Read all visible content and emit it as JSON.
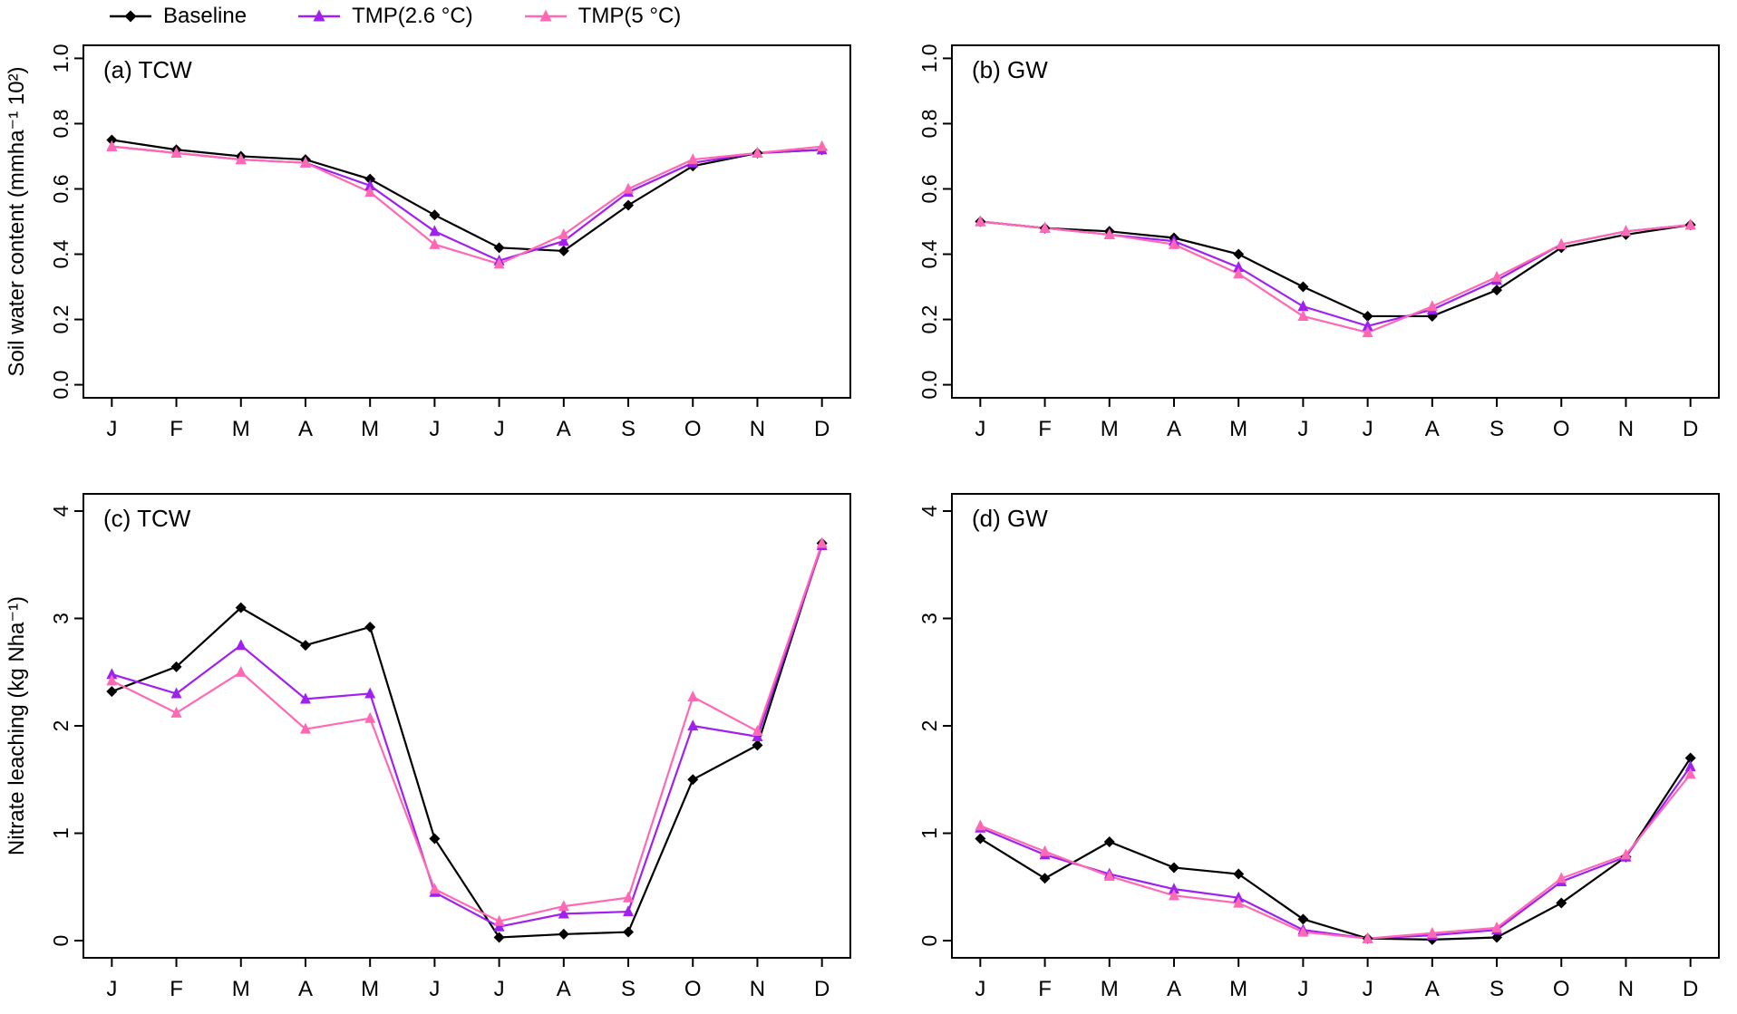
{
  "legend": {
    "items": [
      {
        "label": "Baseline",
        "color": "#000000",
        "marker": "diamond"
      },
      {
        "label": "TMP(2.6 °C)",
        "color": "#A020F0",
        "marker": "triangle"
      },
      {
        "label": "TMP(5 °C)",
        "color": "#FF69B4",
        "marker": "triangle"
      }
    ]
  },
  "chart_data": [
    {
      "type": "line",
      "id": "a",
      "title": "(a) TCW",
      "xlabel": "",
      "ylabel": "Soil water content (mmha⁻¹ 10²)",
      "categories": [
        "J",
        "F",
        "M",
        "A",
        "M",
        "J",
        "J",
        "A",
        "S",
        "O",
        "N",
        "D"
      ],
      "ylim": [
        0,
        1.0
      ],
      "yticks": [
        0.0,
        0.2,
        0.4,
        0.6,
        0.8,
        1.0
      ],
      "ytick_labels": [
        "0.0",
        "0.2",
        "0.4",
        "0.6",
        "0.8",
        "1.0"
      ],
      "grid": false,
      "series": [
        {
          "name": "Baseline",
          "color": "#000000",
          "marker": "diamond",
          "values": [
            0.75,
            0.72,
            0.7,
            0.69,
            0.63,
            0.52,
            0.42,
            0.41,
            0.55,
            0.67,
            0.71,
            0.72
          ]
        },
        {
          "name": "TMP(2.6 °C)",
          "color": "#A020F0",
          "marker": "triangle",
          "values": [
            0.73,
            0.71,
            0.69,
            0.68,
            0.61,
            0.47,
            0.38,
            0.44,
            0.59,
            0.68,
            0.71,
            0.72
          ]
        },
        {
          "name": "TMP(5 °C)",
          "color": "#FF69B4",
          "marker": "triangle",
          "values": [
            0.73,
            0.71,
            0.69,
            0.68,
            0.59,
            0.43,
            0.37,
            0.46,
            0.6,
            0.69,
            0.71,
            0.73
          ]
        }
      ]
    },
    {
      "type": "line",
      "id": "b",
      "title": "(b) GW",
      "xlabel": "",
      "ylabel": "",
      "categories": [
        "J",
        "F",
        "M",
        "A",
        "M",
        "J",
        "J",
        "A",
        "S",
        "O",
        "N",
        "D"
      ],
      "ylim": [
        0,
        1.0
      ],
      "yticks": [
        0.0,
        0.2,
        0.4,
        0.6,
        0.8,
        1.0
      ],
      "ytick_labels": [
        "0.0",
        "0.2",
        "0.4",
        "0.6",
        "0.8",
        "1.0"
      ],
      "grid": false,
      "series": [
        {
          "name": "Baseline",
          "color": "#000000",
          "marker": "diamond",
          "values": [
            0.5,
            0.48,
            0.47,
            0.45,
            0.4,
            0.3,
            0.21,
            0.21,
            0.29,
            0.42,
            0.46,
            0.49
          ]
        },
        {
          "name": "TMP(2.6 °C)",
          "color": "#A020F0",
          "marker": "triangle",
          "values": [
            0.5,
            0.48,
            0.46,
            0.44,
            0.36,
            0.24,
            0.18,
            0.23,
            0.32,
            0.43,
            0.47,
            0.49
          ]
        },
        {
          "name": "TMP(5 °C)",
          "color": "#FF69B4",
          "marker": "triangle",
          "values": [
            0.5,
            0.48,
            0.46,
            0.43,
            0.34,
            0.21,
            0.16,
            0.24,
            0.33,
            0.43,
            0.47,
            0.49
          ]
        }
      ]
    },
    {
      "type": "line",
      "id": "c",
      "title": "(c) TCW",
      "xlabel": "",
      "ylabel": "Nitrate leaching (kg Nha⁻¹)",
      "categories": [
        "J",
        "F",
        "M",
        "A",
        "M",
        "J",
        "J",
        "A",
        "S",
        "O",
        "N",
        "D"
      ],
      "ylim": [
        0,
        4.0
      ],
      "yticks": [
        0,
        1,
        2,
        3,
        4
      ],
      "ytick_labels": [
        "0",
        "1",
        "2",
        "3",
        "4"
      ],
      "grid": false,
      "series": [
        {
          "name": "Baseline",
          "color": "#000000",
          "marker": "diamond",
          "values": [
            2.32,
            2.55,
            3.1,
            2.75,
            2.92,
            0.95,
            0.03,
            0.06,
            0.08,
            1.5,
            1.82,
            3.7
          ]
        },
        {
          "name": "TMP(2.6 °C)",
          "color": "#A020F0",
          "marker": "triangle",
          "values": [
            2.48,
            2.3,
            2.75,
            2.25,
            2.3,
            0.45,
            0.13,
            0.25,
            0.27,
            2.0,
            1.9,
            3.68
          ]
        },
        {
          "name": "TMP(5 °C)",
          "color": "#FF69B4",
          "marker": "triangle",
          "values": [
            2.42,
            2.12,
            2.5,
            1.97,
            2.07,
            0.48,
            0.18,
            0.32,
            0.4,
            2.27,
            1.95,
            3.7
          ]
        }
      ]
    },
    {
      "type": "line",
      "id": "d",
      "title": "(d) GW",
      "xlabel": "",
      "ylabel": "",
      "categories": [
        "J",
        "F",
        "M",
        "A",
        "M",
        "J",
        "J",
        "A",
        "S",
        "O",
        "N",
        "D"
      ],
      "ylim": [
        0,
        4.0
      ],
      "yticks": [
        0,
        1,
        2,
        3,
        4
      ],
      "ytick_labels": [
        "0",
        "1",
        "2",
        "3",
        "4"
      ],
      "grid": false,
      "series": [
        {
          "name": "Baseline",
          "color": "#000000",
          "marker": "diamond",
          "values": [
            0.95,
            0.58,
            0.92,
            0.68,
            0.62,
            0.2,
            0.02,
            0.01,
            0.03,
            0.35,
            0.78,
            1.7
          ]
        },
        {
          "name": "TMP(2.6 °C)",
          "color": "#A020F0",
          "marker": "triangle",
          "values": [
            1.05,
            0.8,
            0.62,
            0.48,
            0.4,
            0.1,
            0.02,
            0.05,
            0.1,
            0.55,
            0.78,
            1.62
          ]
        },
        {
          "name": "TMP(5 °C)",
          "color": "#FF69B4",
          "marker": "triangle",
          "values": [
            1.07,
            0.83,
            0.6,
            0.42,
            0.35,
            0.08,
            0.02,
            0.07,
            0.12,
            0.58,
            0.8,
            1.55
          ]
        }
      ]
    }
  ]
}
